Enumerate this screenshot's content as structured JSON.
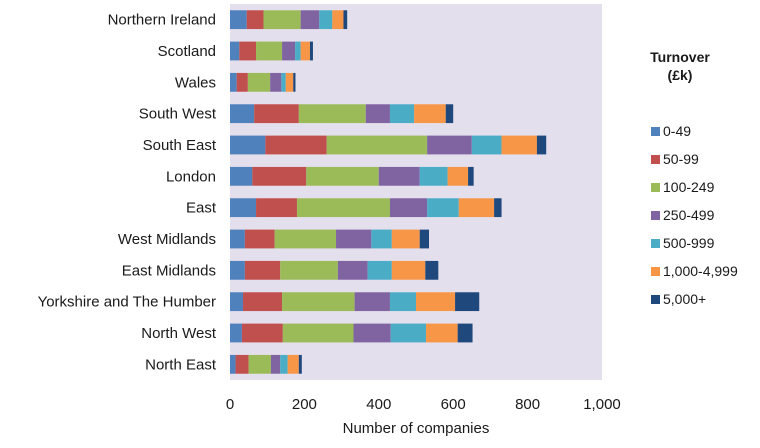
{
  "chart_data": {
    "type": "bar",
    "orientation": "horizontal",
    "stacked": true,
    "categories": [
      "Northern Ireland",
      "Scotland",
      "Wales",
      "South West",
      "South East",
      "London",
      "East",
      "West Midlands",
      "East Midlands",
      "Yorkshire and The Humber",
      "North West",
      "North East"
    ],
    "series": [
      {
        "name": "0-49",
        "color": "#4f81bd",
        "values": [
          45,
          25,
          18,
          65,
          95,
          60,
          70,
          40,
          40,
          35,
          32,
          15
        ]
      },
      {
        "name": "50-99",
        "color": "#c0504d",
        "values": [
          45,
          45,
          30,
          120,
          165,
          145,
          110,
          80,
          95,
          105,
          110,
          35
        ]
      },
      {
        "name": "100-249",
        "color": "#9bbb59",
        "values": [
          100,
          70,
          60,
          180,
          270,
          195,
          250,
          165,
          155,
          195,
          190,
          60
        ]
      },
      {
        "name": "250-499",
        "color": "#8064a2",
        "values": [
          50,
          35,
          30,
          65,
          120,
          110,
          100,
          95,
          80,
          95,
          100,
          25
        ]
      },
      {
        "name": "500-999",
        "color": "#4bacc6",
        "values": [
          35,
          15,
          12,
          65,
          80,
          75,
          85,
          55,
          65,
          70,
          95,
          20
        ]
      },
      {
        "name": "1,000-4,999",
        "color": "#f79646",
        "values": [
          30,
          25,
          20,
          85,
          95,
          55,
          95,
          75,
          90,
          105,
          85,
          30
        ]
      },
      {
        "name": "5,000+",
        "color": "#1f497d",
        "values": [
          10,
          8,
          6,
          20,
          25,
          15,
          20,
          25,
          35,
          65,
          40,
          8
        ]
      }
    ],
    "xlabel": "Number of companies",
    "xlim": [
      0,
      1000
    ],
    "xticks": [
      0,
      200,
      400,
      600,
      800,
      1000
    ],
    "xtick_labels": [
      "0",
      "200",
      "400",
      "600",
      "800",
      "1,000"
    ],
    "plot_background": "#e4dfec",
    "legend": {
      "title_line1": "Turnover",
      "title_line2": "(£k)",
      "placement": "right"
    },
    "grid": false
  }
}
